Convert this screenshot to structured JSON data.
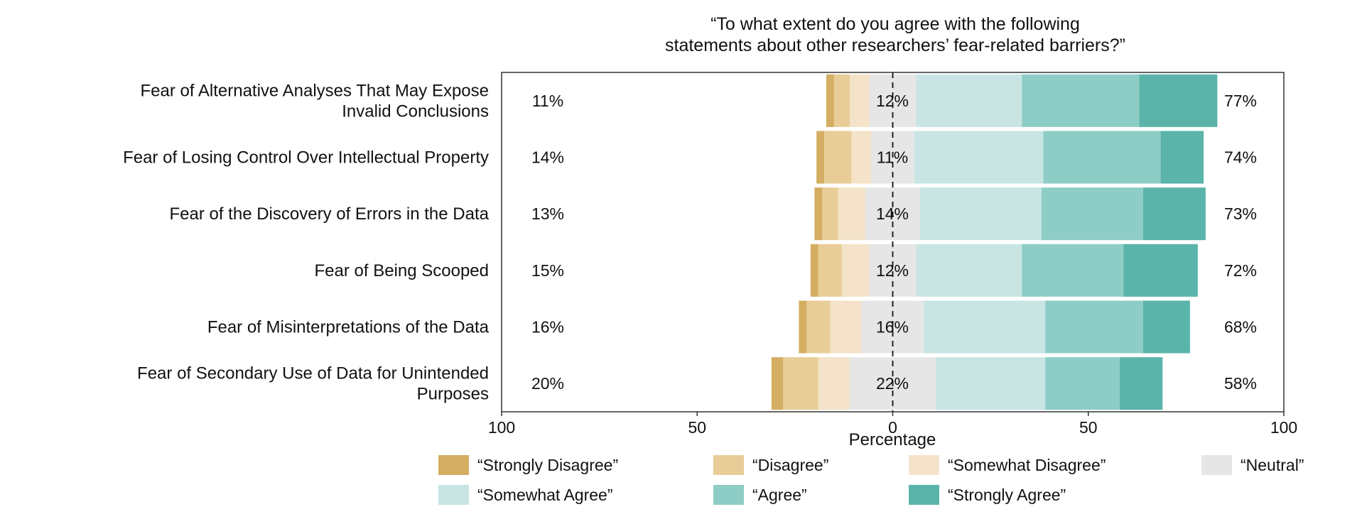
{
  "chart_data": {
    "type": "bar",
    "title_lines": [
      "“To what extent do you agree with the following",
      "statements about other researchers’ fear-related barriers?”"
    ],
    "xlabel": "Percentage",
    "xlim": [
      -100,
      100
    ],
    "x_ticks": [
      {
        "value": -100,
        "label": "100"
      },
      {
        "value": -50,
        "label": "50"
      },
      {
        "value": 0,
        "label": "0"
      },
      {
        "value": 50,
        "label": "50"
      },
      {
        "value": 100,
        "label": "100"
      }
    ],
    "series_names": [
      "“Strongly Disagree”",
      "“Disagree”",
      "“Somewhat Disagree”",
      "“Neutral”",
      "“Somewhat Agree”",
      "“Agree”",
      "“Strongly Agree”"
    ],
    "colors": [
      "#d4ae62",
      "#e8cd98",
      "#f4e3c8",
      "#e6e6e6",
      "#c8e5e4",
      "#8ecdc6",
      "#5ab4aa"
    ],
    "rows": [
      {
        "label_lines": [
          "Fear of Alternative Analyses That May Expose",
          "Invalid Conclusions"
        ],
        "values": [
          2,
          4,
          5,
          12,
          27,
          30,
          20
        ],
        "left_label": "11%",
        "mid_label": "12%",
        "right_label": "77%"
      },
      {
        "label_lines": [
          "Fear of Losing Control Over Intellectual Property"
        ],
        "values": [
          2,
          7,
          5,
          11,
          33,
          30,
          11
        ],
        "left_label": "14%",
        "mid_label": "11%",
        "right_label": "74%"
      },
      {
        "label_lines": [
          "Fear of the Discovery of Errors in the Data"
        ],
        "values": [
          2,
          4,
          7,
          14,
          31,
          26,
          16
        ],
        "left_label": "13%",
        "mid_label": "14%",
        "right_label": "73%"
      },
      {
        "label_lines": [
          "Fear of Being Scooped"
        ],
        "values": [
          2,
          6,
          7,
          12,
          27,
          26,
          19
        ],
        "left_label": "15%",
        "mid_label": "12%",
        "right_label": "72%"
      },
      {
        "label_lines": [
          "Fear of Misinterpretations of the Data"
        ],
        "values": [
          2,
          6,
          8,
          16,
          31,
          25,
          12
        ],
        "left_label": "16%",
        "mid_label": "16%",
        "right_label": "68%"
      },
      {
        "label_lines": [
          "Fear of Secondary Use of Data for Unintended",
          "Purposes"
        ],
        "values": [
          3,
          9,
          8,
          22,
          28,
          19,
          11
        ],
        "left_label": "20%",
        "mid_label": "22%",
        "right_label": "58%"
      }
    ],
    "legend_position": "bottom",
    "grid": false
  }
}
